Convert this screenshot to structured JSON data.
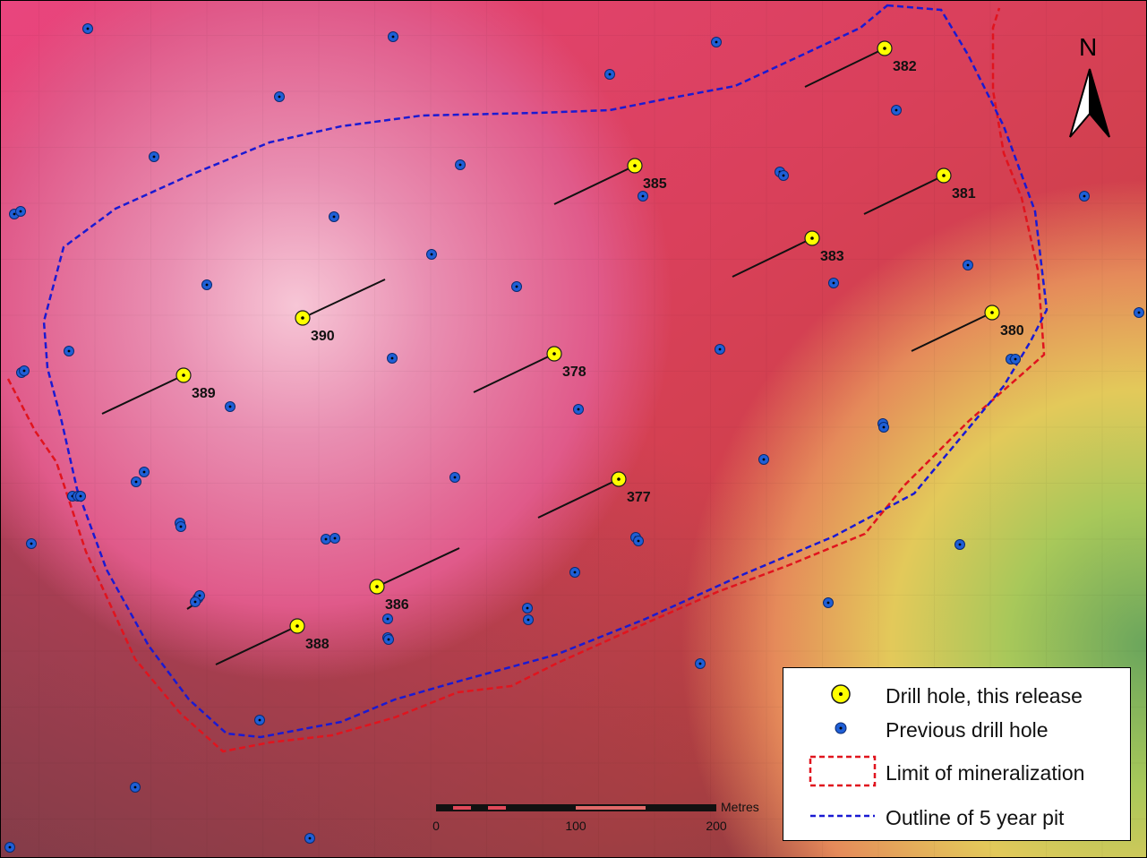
{
  "map": {
    "north_label": "N",
    "colors": {
      "drill_new_fill": "#ffff00",
      "drill_old_fill": "#1f5fd6",
      "limit_line": "#e0141e",
      "pit_line": "#1a1ad2"
    }
  },
  "drill_holes_release": [
    {
      "id": "377"
    },
    {
      "id": "378"
    },
    {
      "id": "380"
    },
    {
      "id": "381"
    },
    {
      "id": "382"
    },
    {
      "id": "383"
    },
    {
      "id": "385"
    },
    {
      "id": "386"
    },
    {
      "id": "388"
    },
    {
      "id": "389"
    },
    {
      "id": "390"
    }
  ],
  "scale_bar": {
    "unit": "Metres",
    "ticks": [
      "0",
      "100",
      "200"
    ]
  },
  "legend": {
    "items": [
      {
        "label": "Drill hole, this release",
        "symbol": "yellow-dot"
      },
      {
        "label": "Previous drill hole",
        "symbol": "blue-dot"
      },
      {
        "label": "Limit of mineralization",
        "symbol": "red-dashed-box"
      },
      {
        "label": "Outline of 5 year pit",
        "symbol": "blue-dashed-line"
      }
    ]
  }
}
